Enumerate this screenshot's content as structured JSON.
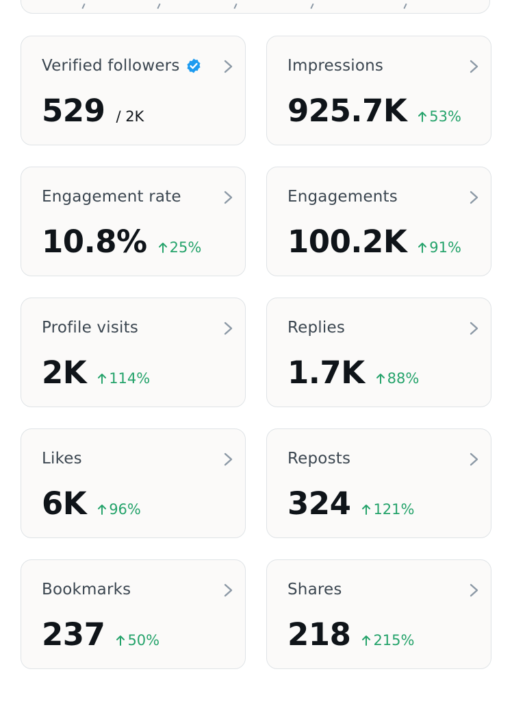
{
  "colors": {
    "card_background": "#fbfaf9",
    "card_border": "#dfe3e6",
    "label": "#3b4650",
    "value": "#0f1419",
    "positive_change": "#25a36b",
    "verified_badge": "#1d9bf0",
    "chevron": "#8b98a5"
  },
  "metrics": [
    {
      "label": "Verified followers",
      "value": "529",
      "total": "/ 2K",
      "icon": "verified-badge-icon"
    },
    {
      "label": "Impressions",
      "value": "925.7K",
      "change": "53%"
    },
    {
      "label": "Engagement rate",
      "value": "10.8%",
      "change": "25%"
    },
    {
      "label": "Engagements",
      "value": "100.2K",
      "change": "91%"
    },
    {
      "label": "Profile visits",
      "value": "2K",
      "change": "114%"
    },
    {
      "label": "Replies",
      "value": "1.7K",
      "change": "88%"
    },
    {
      "label": "Likes",
      "value": "6K",
      "change": "96%"
    },
    {
      "label": "Reposts",
      "value": "324",
      "change": "121%"
    },
    {
      "label": "Bookmarks",
      "value": "237",
      "change": "50%"
    },
    {
      "label": "Shares",
      "value": "218",
      "change": "215%"
    }
  ]
}
